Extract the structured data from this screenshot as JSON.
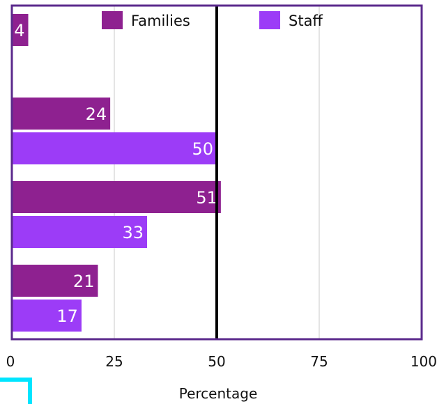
{
  "chart_data": {
    "type": "bar",
    "orientation": "horizontal",
    "title": "",
    "xlabel": "Percentage",
    "ylabel": "",
    "xlim": [
      0,
      100
    ],
    "x_ticks": [
      "0",
      "25",
      "50",
      "75",
      "100"
    ],
    "grid": true,
    "legend_position": "top",
    "reference_line_x": 50,
    "series": [
      {
        "name": "Families",
        "color": "#8e2190",
        "values": [
          4,
          24,
          51,
          21
        ]
      },
      {
        "name": "Staff",
        "color": "#9c3cf7",
        "values": [
          null,
          50,
          33,
          17
        ]
      }
    ],
    "value_labels": [
      [
        "4",
        "24",
        "51",
        "21"
      ],
      [
        null,
        "50",
        "33",
        "17"
      ]
    ]
  },
  "decoration": {
    "corner_accent_color": "#00e5ff"
  }
}
